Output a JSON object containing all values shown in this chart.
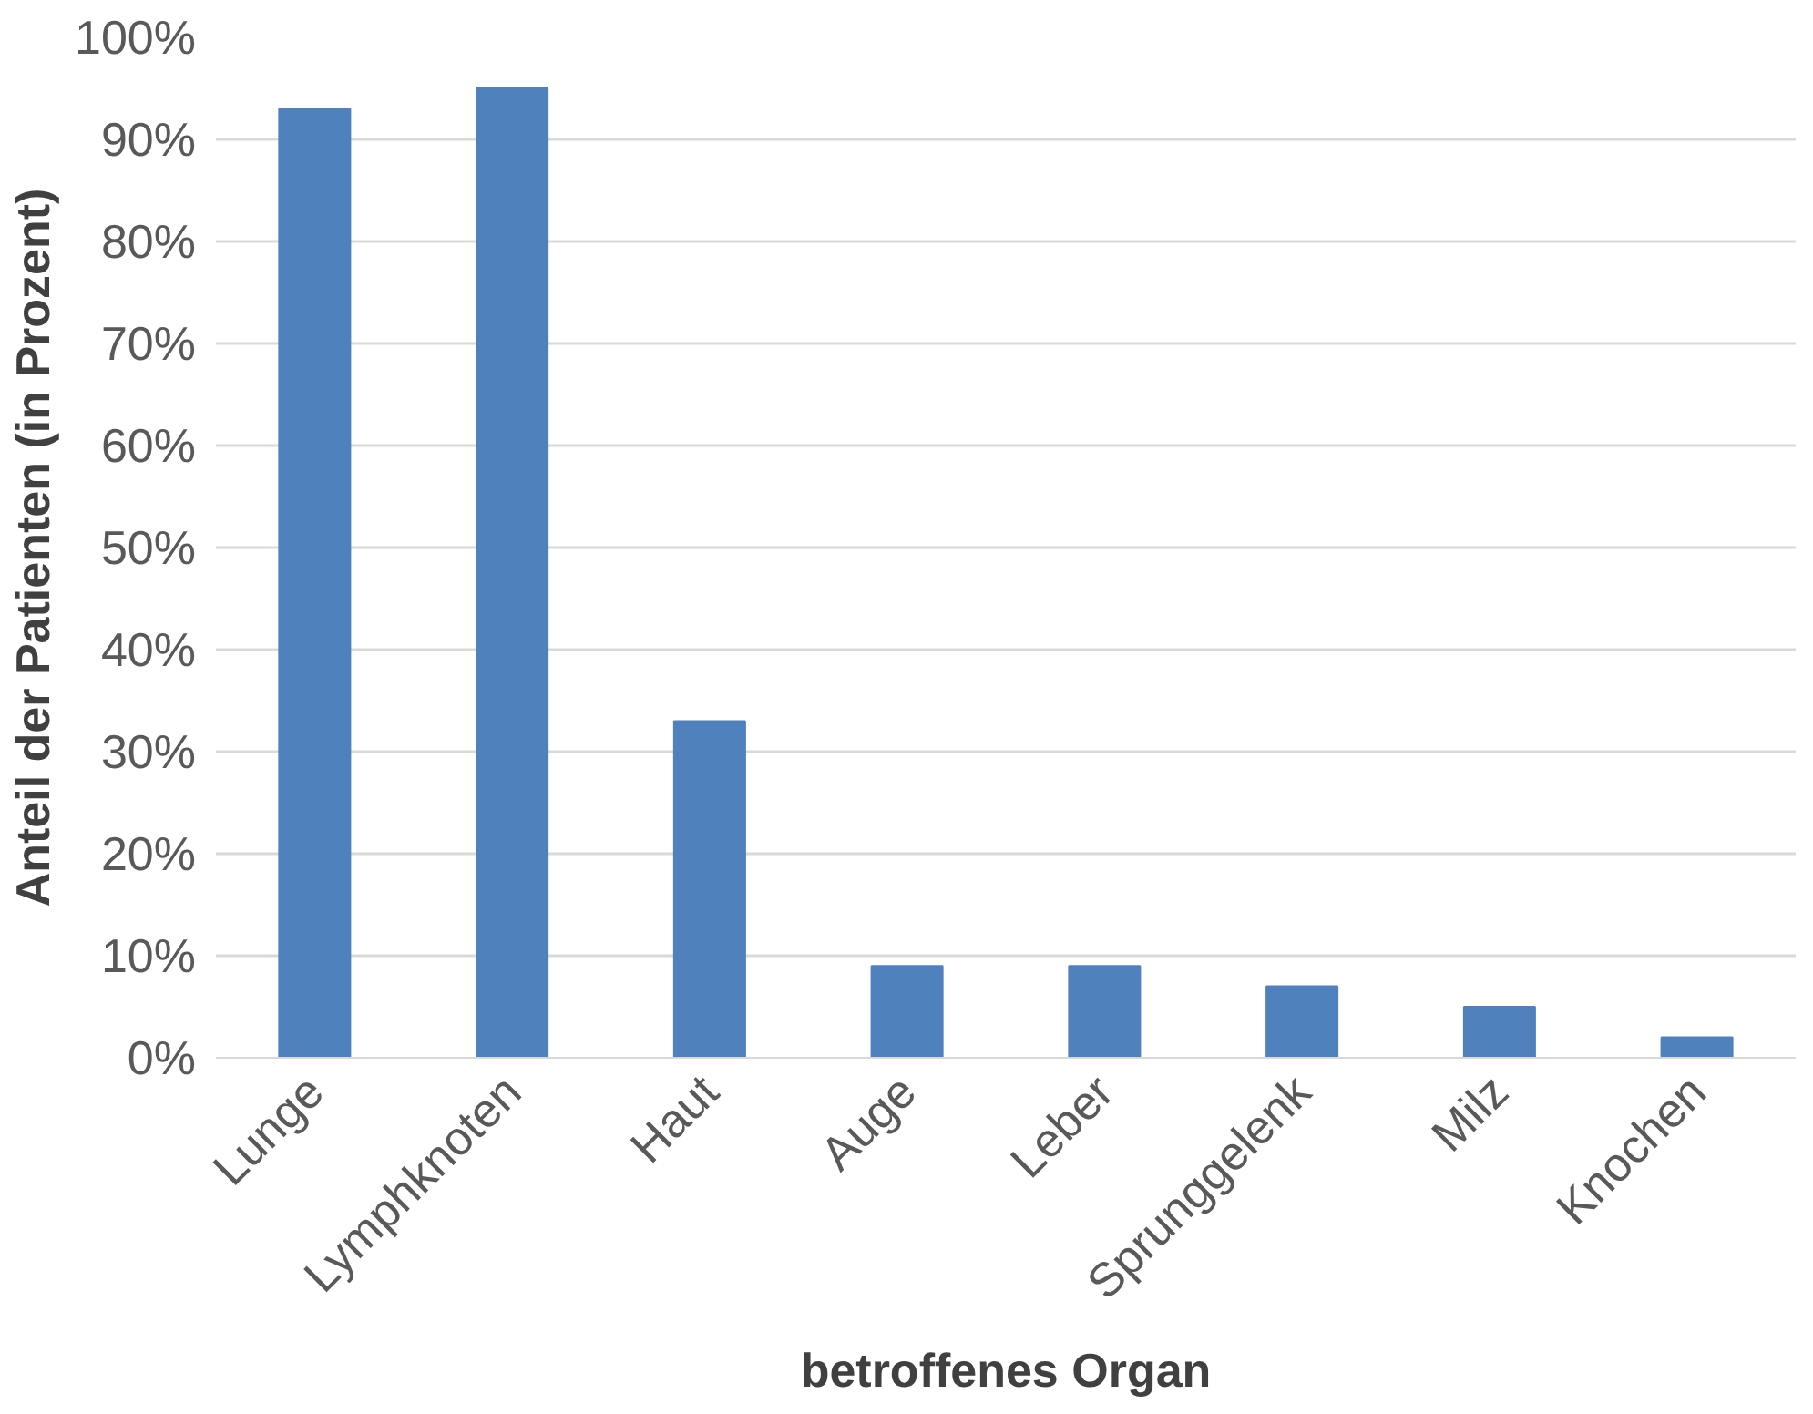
{
  "chart_data": {
    "type": "bar",
    "xlabel": "betroffenes Organ",
    "ylabel": "Anteil der Patienten (in Prozent)",
    "categories": [
      "Lunge",
      "Lymphknoten",
      "Haut",
      "Auge",
      "Leber",
      "Sprunggelenk",
      "Milz",
      "Knochen"
    ],
    "values": [
      93,
      95,
      33,
      9,
      9,
      7,
      5,
      2
    ],
    "color": "#4f81bd",
    "ylim": [
      0,
      100
    ],
    "yticks": [
      {
        "value": 0,
        "label": "0%"
      },
      {
        "value": 10,
        "label": "10%"
      },
      {
        "value": 20,
        "label": "20%"
      },
      {
        "value": 30,
        "label": "30%"
      },
      {
        "value": 40,
        "label": "40%"
      },
      {
        "value": 50,
        "label": "50%"
      },
      {
        "value": 60,
        "label": "60%"
      },
      {
        "value": 70,
        "label": "70%"
      },
      {
        "value": 80,
        "label": "80%"
      },
      {
        "value": 90,
        "label": "90%"
      },
      {
        "value": 100,
        "label": "100%"
      }
    ],
    "grid": "y"
  }
}
